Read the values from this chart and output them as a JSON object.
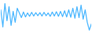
{
  "values": [
    1.5,
    -4.0,
    3.5,
    -2.0,
    2.5,
    -3.5,
    1.0,
    -2.5,
    2.0,
    0.5,
    -1.0,
    0.8,
    -0.8,
    0.5,
    -0.6,
    0.7,
    -0.5,
    0.6,
    -0.4,
    0.6,
    -0.5,
    0.7,
    -0.4,
    0.5,
    -0.6,
    0.8,
    -0.5,
    0.9,
    -0.6,
    1.0,
    -0.7,
    1.2,
    -0.8,
    1.5,
    -0.9,
    2.0,
    -1.2,
    2.5,
    -1.0,
    3.0,
    -1.5,
    1.5,
    -2.5,
    -5.0,
    -3.0
  ],
  "line_color": "#4db8ff",
  "background_color": "#ffffff",
  "linewidth": 0.9
}
